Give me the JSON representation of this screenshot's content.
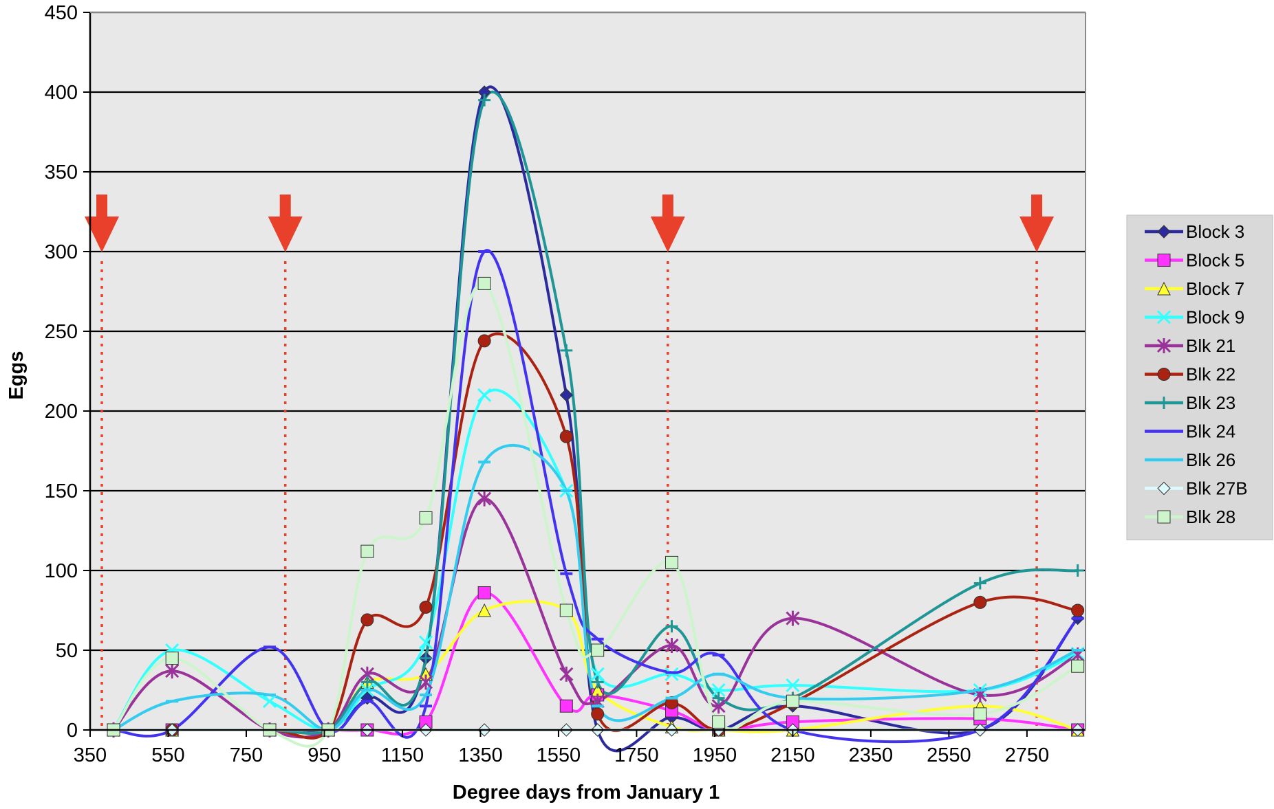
{
  "chart_data": {
    "type": "line",
    "title": "",
    "xlabel": "Degree days from January 1",
    "ylabel": "Eggs",
    "xlim": [
      350,
      2900
    ],
    "ylim": [
      0,
      450
    ],
    "x_ticks": [
      350,
      550,
      750,
      950,
      1150,
      1350,
      1550,
      1750,
      1950,
      2150,
      2350,
      2550,
      2750
    ],
    "y_ticks": [
      0,
      50,
      100,
      150,
      200,
      250,
      300,
      350,
      400,
      450
    ],
    "grid": "horizontal",
    "legend_position": "right",
    "plot_background": "#e8e8e8",
    "spray_markers": {
      "color": "#e8402a",
      "x": [
        380,
        850,
        1830,
        2775
      ]
    },
    "series": [
      {
        "name": "Block 3",
        "color": "#2b2b9e",
        "marker": "diamond",
        "x": [
          410,
          560,
          810,
          960,
          1060,
          1210,
          1360,
          1570,
          1650,
          1840,
          1960,
          2150,
          2630,
          2880
        ],
        "y": [
          0,
          0,
          0,
          0,
          20,
          45,
          400,
          210,
          0,
          8,
          0,
          15,
          0,
          70
        ]
      },
      {
        "name": "Block 5",
        "color": "#ff33ff",
        "marker": "square",
        "x": [
          410,
          560,
          810,
          960,
          1060,
          1210,
          1360,
          1570,
          1650,
          1840,
          1960,
          2150,
          2630,
          2880
        ],
        "y": [
          0,
          0,
          0,
          0,
          0,
          5,
          86,
          15,
          22,
          12,
          0,
          5,
          7,
          0
        ]
      },
      {
        "name": "Block 7",
        "color": "#ffff33",
        "marker": "triangle",
        "x": [
          410,
          560,
          810,
          960,
          1060,
          1210,
          1360,
          1570,
          1650,
          1840,
          1960,
          2150,
          2630,
          2880
        ],
        "y": [
          0,
          0,
          0,
          0,
          30,
          35,
          75,
          75,
          25,
          2,
          0,
          0,
          15,
          0
        ]
      },
      {
        "name": "Block 9",
        "color": "#33ffff",
        "marker": "x",
        "x": [
          410,
          560,
          810,
          960,
          1060,
          1210,
          1360,
          1570,
          1650,
          1840,
          1960,
          2150,
          2630,
          2880
        ],
        "y": [
          0,
          50,
          18,
          0,
          25,
          55,
          210,
          150,
          35,
          35,
          25,
          28,
          25,
          48
        ]
      },
      {
        "name": "Blk 21",
        "color": "#993399",
        "marker": "asterisk",
        "x": [
          410,
          560,
          810,
          960,
          1060,
          1210,
          1360,
          1570,
          1650,
          1840,
          1960,
          2150,
          2630,
          2880
        ],
        "y": [
          0,
          37,
          0,
          0,
          35,
          30,
          145,
          35,
          18,
          53,
          15,
          70,
          22,
          47
        ]
      },
      {
        "name": "Blk 22",
        "color": "#aa2211",
        "marker": "circle",
        "x": [
          410,
          560,
          810,
          960,
          1060,
          1210,
          1360,
          1570,
          1650,
          1840,
          1960,
          2150,
          2630,
          2880
        ],
        "y": [
          0,
          0,
          0,
          0,
          69,
          77,
          244,
          184,
          10,
          17,
          0,
          17,
          80,
          75
        ]
      },
      {
        "name": "Blk 23",
        "color": "#1f9595",
        "marker": "plus",
        "x": [
          410,
          560,
          810,
          960,
          1060,
          1210,
          1360,
          1570,
          1650,
          1840,
          1960,
          2150,
          2630,
          2880
        ],
        "y": [
          0,
          0,
          0,
          0,
          30,
          45,
          395,
          238,
          30,
          65,
          20,
          20,
          92,
          100
        ]
      },
      {
        "name": "Blk 24",
        "color": "#4433ee",
        "marker": "dash",
        "x": [
          410,
          560,
          810,
          960,
          1060,
          1210,
          1360,
          1570,
          1650,
          1840,
          1960,
          2150,
          2630,
          2880
        ],
        "y": [
          0,
          0,
          52,
          0,
          18,
          15,
          300,
          98,
          57,
          36,
          47,
          0,
          0,
          70
        ]
      },
      {
        "name": "Blk 26",
        "color": "#33ccee",
        "marker": "dash",
        "x": [
          410,
          560,
          810,
          960,
          1060,
          1210,
          1360,
          1570,
          1650,
          1840,
          1960,
          2150,
          2630,
          2880
        ],
        "y": [
          0,
          18,
          22,
          0,
          25,
          22,
          168,
          150,
          15,
          20,
          35,
          20,
          25,
          50
        ]
      },
      {
        "name": "Blk 27B",
        "color": "#ddfaff",
        "marker": "diamond",
        "x": [
          410,
          560,
          810,
          960,
          1060,
          1210,
          1360,
          1570,
          1650,
          1840,
          1960,
          2150,
          2630,
          2880
        ],
        "y": [
          0,
          0,
          0,
          0,
          0,
          0,
          0,
          0,
          0,
          0,
          0,
          0,
          0,
          0
        ]
      },
      {
        "name": "Blk 28",
        "color": "#ccf5cc",
        "marker": "square",
        "x": [
          410,
          560,
          810,
          960,
          1060,
          1210,
          1360,
          1570,
          1650,
          1840,
          1960,
          2150,
          2630,
          2880
        ],
        "y": [
          0,
          45,
          0,
          0,
          112,
          133,
          280,
          75,
          50,
          105,
          5,
          18,
          10,
          40
        ]
      }
    ]
  }
}
